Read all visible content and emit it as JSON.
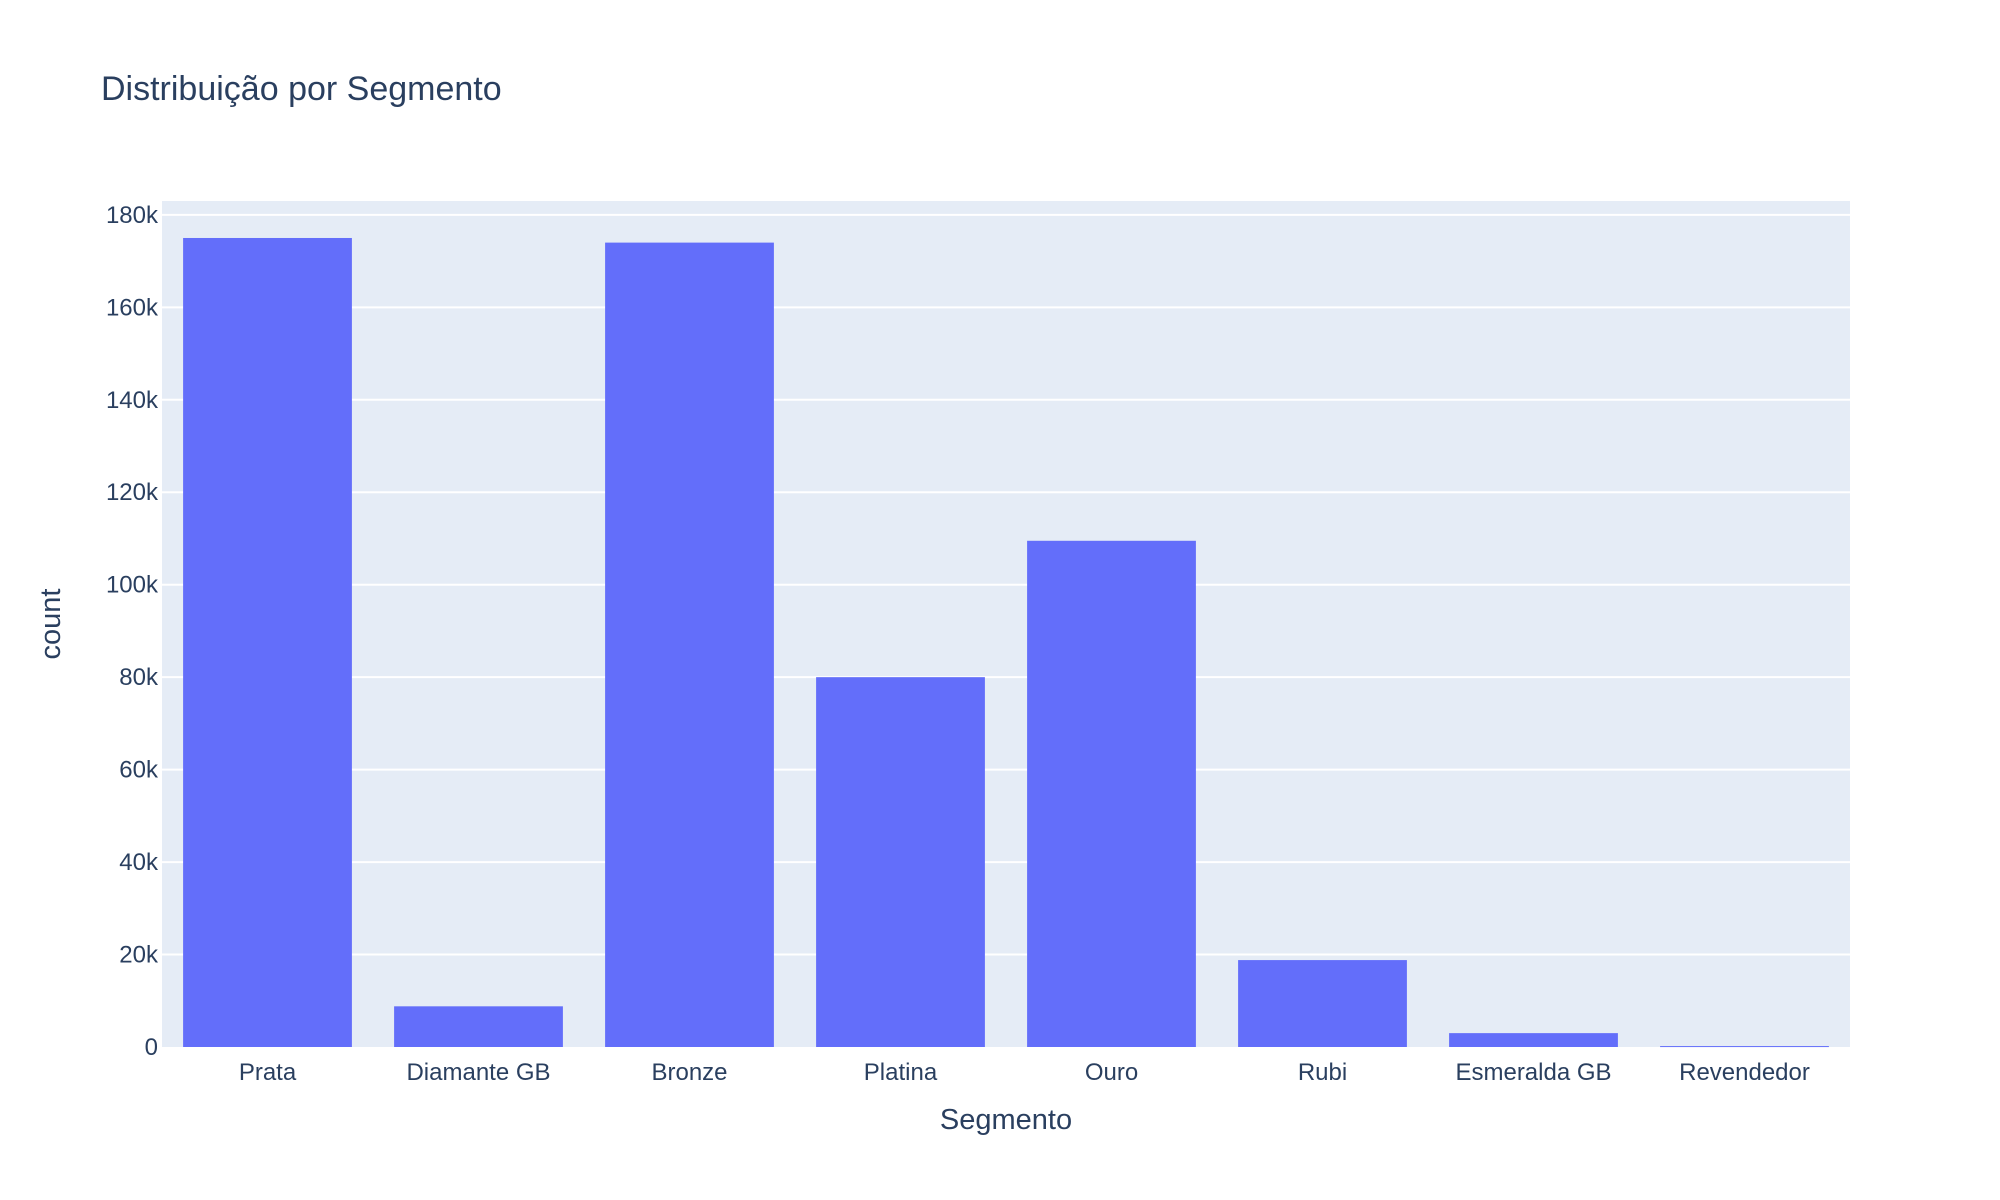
{
  "chart_data": {
    "type": "bar",
    "title": "Distribuição por Segmento",
    "xlabel": "Segmento",
    "ylabel": "count",
    "categories": [
      "Prata",
      "Diamante GB",
      "Bronze",
      "Platina",
      "Ouro",
      "Rubi",
      "Esmeralda GB",
      "Revendedor"
    ],
    "values": [
      175000,
      8800,
      174000,
      80000,
      109500,
      18800,
      3000,
      200
    ],
    "ylim": [
      0,
      183000
    ],
    "yticks": [
      0,
      20000,
      40000,
      60000,
      80000,
      100000,
      120000,
      140000,
      160000,
      180000
    ],
    "ytick_labels": [
      "0",
      "20k",
      "40k",
      "60k",
      "80k",
      "100k",
      "120k",
      "140k",
      "160k",
      "180k"
    ],
    "grid": true,
    "colors": {
      "bar": "#636efa",
      "plot_bg": "#e5ecf6",
      "grid": "#ffffff",
      "text": "#2a3f5f"
    }
  }
}
